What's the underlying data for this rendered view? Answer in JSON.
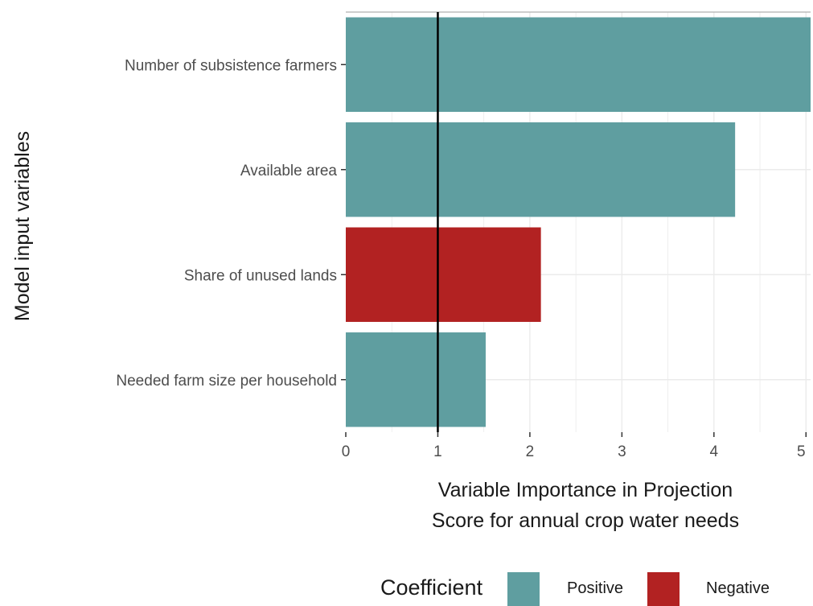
{
  "chart_data": {
    "type": "bar",
    "orientation": "horizontal",
    "categories": [
      "Number of subsistence farmers",
      "Available area",
      "Share of unused lands",
      "Needed farm size per household"
    ],
    "values": [
      5.05,
      4.23,
      2.12,
      1.52
    ],
    "coefficient": [
      "Positive",
      "Positive",
      "Negative",
      "Positive"
    ],
    "xlabel_lines": [
      "Variable Importance in Projection",
      "Score for annual crop water needs"
    ],
    "ylabel": "Model input variables",
    "xticks": [
      0,
      1,
      2,
      3,
      4,
      5
    ],
    "xlim": [
      0,
      5.05
    ],
    "reference_line": 1,
    "grid": true,
    "legend": {
      "title": "Coefficient",
      "placement": "bottom",
      "entries": [
        {
          "label": "Positive",
          "color": "#5f9ea0"
        },
        {
          "label": "Negative",
          "color": "#b22222"
        }
      ]
    }
  }
}
